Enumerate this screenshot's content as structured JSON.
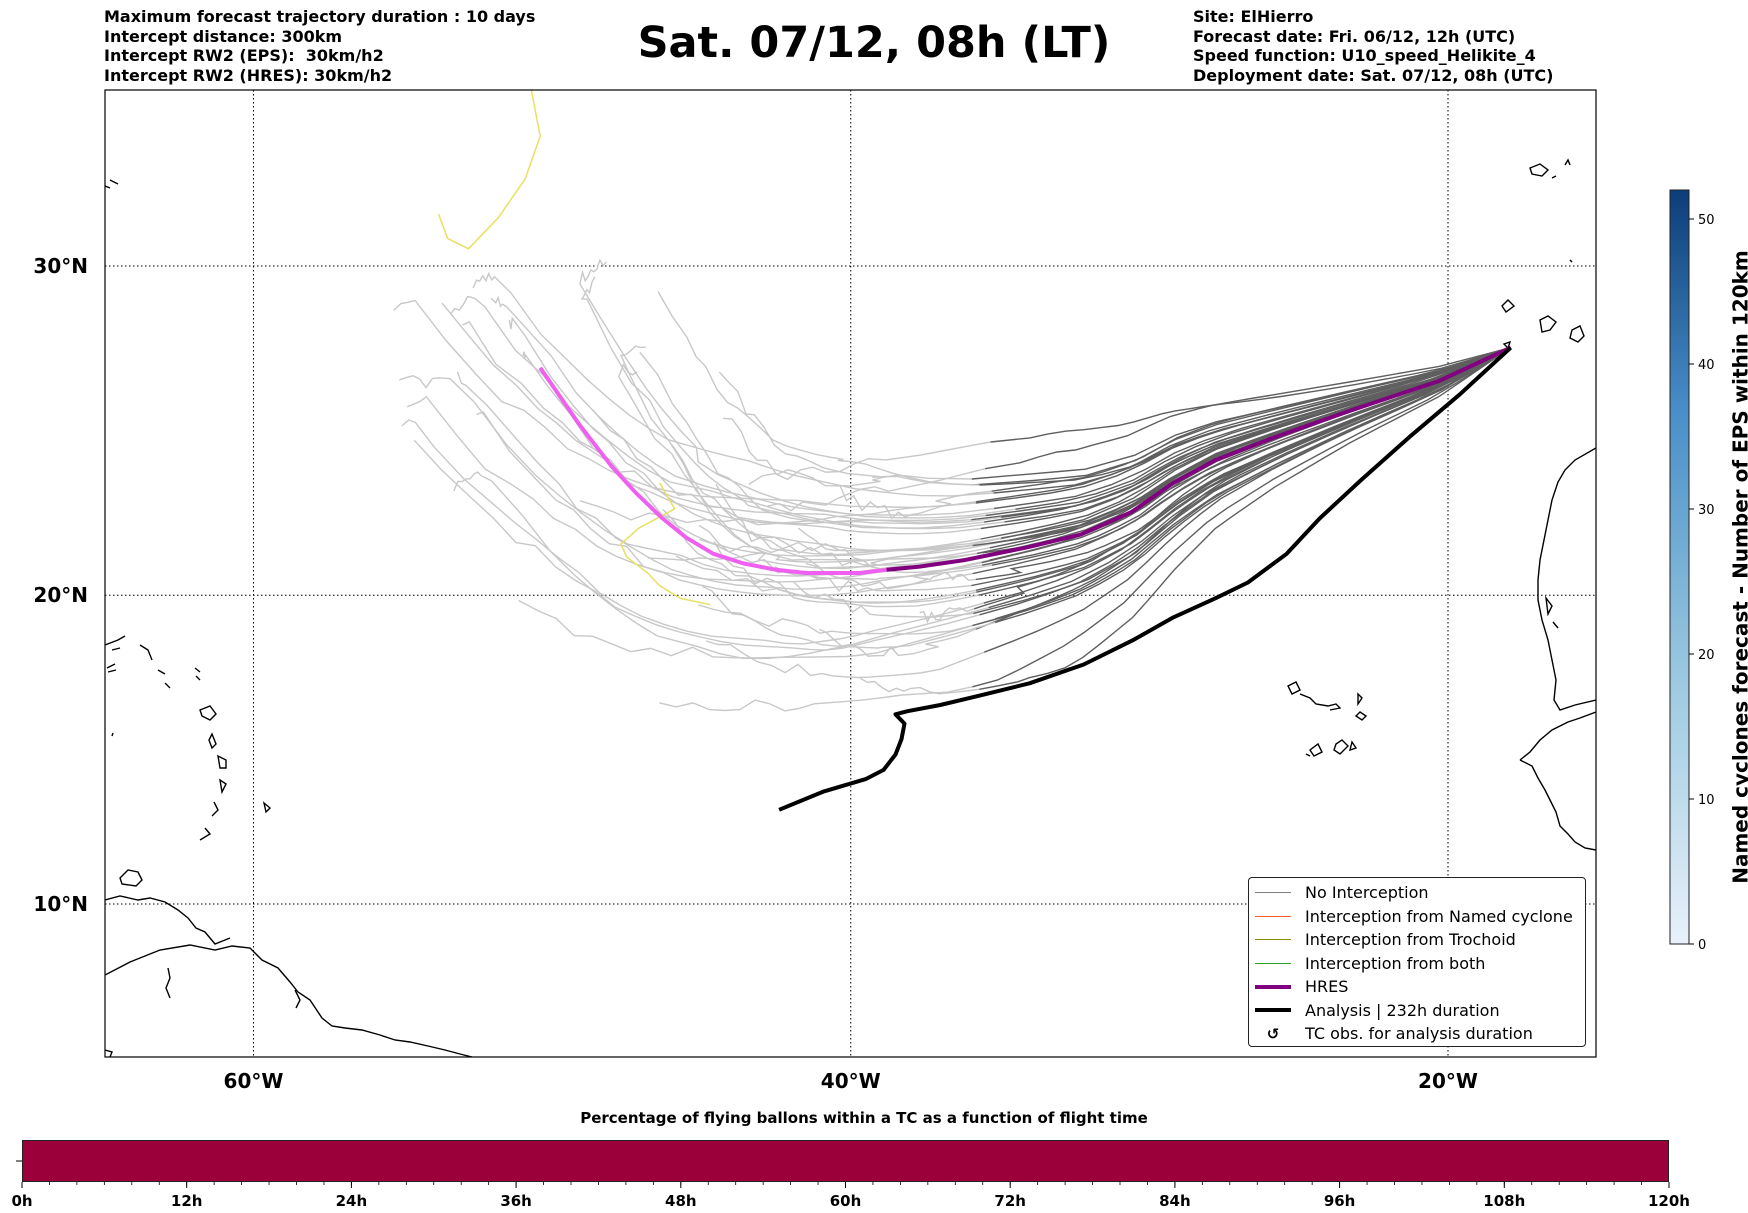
{
  "header": {
    "left_lines": [
      "Maximum forecast trajectory duration : 10 days",
      "Intercept distance: 300km",
      "Intercept RW2 (EPS):  30km/h2",
      "Intercept RW2 (HRES): 30km/h2"
    ],
    "title": "Sat. 07/12, 08h (LT)",
    "right_lines": [
      "Site: ElHierro",
      "Forecast date: Fri. 06/12, 12h (UTC)",
      "Speed function: U10_speed_Helikite_4",
      "Deployment date: Sat. 07/12, 08h (UTC)"
    ]
  },
  "chart_data": [
    {
      "type": "line",
      "subtype": "trajectory map",
      "x_axis": {
        "unit": "degrees longitude (negative = W)",
        "range": [
          -65,
          15
        ],
        "ticks": [
          -60,
          -40,
          -20
        ],
        "tick_labels": [
          "60°W",
          "40°W",
          "20°W"
        ]
      },
      "y_axis": {
        "unit": "degrees latitude",
        "range": [
          5,
          35
        ],
        "ticks": [
          10,
          20,
          30
        ],
        "tick_labels": [
          "10°N",
          "20°N",
          "30°N"
        ]
      },
      "grid": "dotted",
      "legend": {
        "placement": "lower-right",
        "entries": [
          {
            "label": "No Interception",
            "color": "#808080",
            "style": "line-thin"
          },
          {
            "label": "Interception from Named cyclone",
            "color": "#ff5a2a",
            "style": "line-thin"
          },
          {
            "label": "Interception from Trochoid",
            "color": "#8b8b00",
            "style": "line-thin"
          },
          {
            "label": "Interception from both",
            "color": "#2ca02c",
            "style": "line-thin"
          },
          {
            "label": "HRES",
            "color": "#800080",
            "style": "line-thick"
          },
          {
            "label": "Analysis | 232h duration",
            "color": "#000000",
            "style": "line-thick"
          },
          {
            "label": "TC obs. for analysis duration",
            "color": "#000000",
            "style": "marker"
          }
        ]
      },
      "colors": {
        "eps_early": "#5f5f5f",
        "eps_late": "#c8c8c8",
        "hres_early": "#800080",
        "hres_late": "#f060f0",
        "analysis": "#000000",
        "named_cyclone_track": "#e8e060"
      },
      "series": [
        {
          "name": "HRES",
          "x": [
            -17.9,
            -20.3,
            -23.3,
            -25.8,
            -27.8,
            -29.2,
            -30.6,
            -32.3,
            -34.1,
            -36.2,
            -37.7,
            -38.8,
            -39.7,
            -40.6,
            -41.5,
            -42.5,
            -43.6,
            -44.6,
            -45.5,
            -46.3,
            -47.2,
            -48.0,
            -49.1,
            -50.4
          ],
          "y": [
            27.6,
            26.6,
            25.7,
            24.9,
            24.2,
            23.5,
            22.6,
            21.9,
            21.5,
            21.1,
            20.9,
            20.8,
            20.7,
            20.7,
            20.7,
            20.8,
            21.0,
            21.3,
            21.8,
            22.4,
            23.2,
            24.0,
            25.3,
            27.0
          ]
        },
        {
          "name": "Analysis | 232h duration",
          "x": [
            -17.9,
            -19.6,
            -21.3,
            -22.9,
            -24.3,
            -25.4,
            -26.7,
            -27.8,
            -29.2,
            -30.5,
            -32.2,
            -34.0,
            -35.7,
            -37.0,
            -38.1,
            -38.5,
            -38.2,
            -38.3,
            -38.5,
            -38.9,
            -39.5,
            -40.9,
            -42.4
          ],
          "y": [
            27.6,
            26.2,
            24.9,
            23.6,
            22.4,
            21.3,
            20.4,
            19.9,
            19.3,
            18.6,
            17.8,
            17.2,
            16.8,
            16.5,
            16.3,
            16.2,
            15.9,
            15.4,
            14.9,
            14.4,
            14.1,
            13.7,
            13.1
          ]
        },
        {
          "name": "Named cyclone",
          "x": [
            -50.7,
            -50.4,
            -50.9,
            -51.8,
            -52.8,
            -53.5,
            -53.8
          ],
          "y": [
            35.0,
            33.7,
            32.5,
            31.4,
            30.5,
            30.8,
            31.5
          ]
        },
        {
          "name": "Named cyclone",
          "x": [
            -46.4,
            -45.9,
            -47.1,
            -47.7,
            -47.5,
            -46.8,
            -46.4,
            -45.7,
            -44.7
          ],
          "y": [
            23.5,
            22.7,
            22.1,
            21.6,
            21.2,
            20.7,
            20.3,
            19.9,
            19.7
          ]
        }
      ]
    },
    {
      "type": "heatmap",
      "subtype": "colorbar",
      "ylabel": "Named cyclones forecast - Number of EPS within 120km",
      "ylim": [
        0,
        52
      ],
      "ticks": [
        0,
        10,
        20,
        30,
        40,
        50
      ],
      "colors": [
        "#e8f1fb",
        "#9cc9e0",
        "#4a90c8",
        "#0c3d7a"
      ]
    },
    {
      "type": "bar",
      "subtype": "time colorbar",
      "title": "Percentage of flying ballons within a TC as a function of flight time",
      "xlim": [
        0,
        120
      ],
      "tick_labels": [
        "0h",
        "12h",
        "24h",
        "36h",
        "48h",
        "60h",
        "72h",
        "84h",
        "96h",
        "108h",
        "120h"
      ],
      "fill_color": "#9b003b"
    }
  ]
}
